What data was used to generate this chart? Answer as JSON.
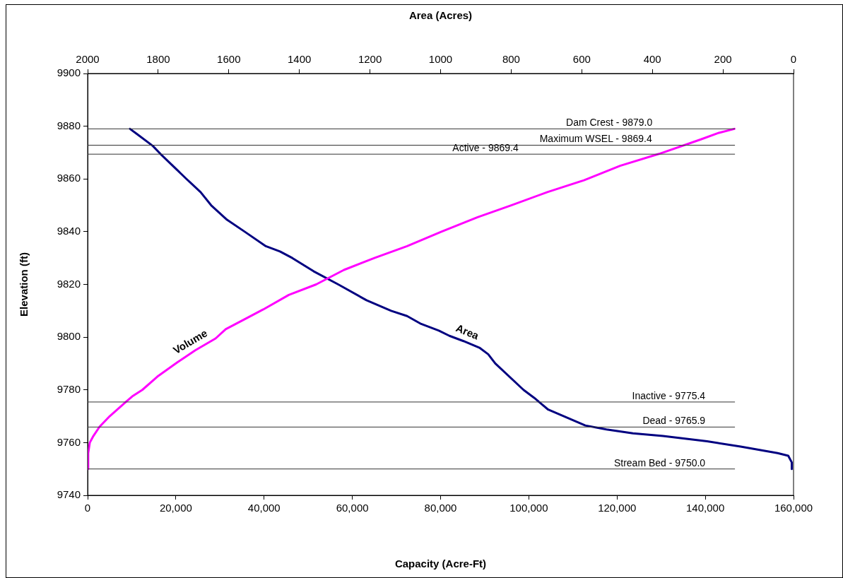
{
  "chart_data": {
    "type": "line",
    "xlabel": "Capacity (Acre-Ft)",
    "x2label": "Area (Acres)",
    "ylabel": "Elevation (ft)",
    "xlim": [
      0,
      160000
    ],
    "xticks": [
      {
        "value": 0,
        "label": "0"
      },
      {
        "value": 20000,
        "label": "20,000"
      },
      {
        "value": 40000,
        "label": "40,000"
      },
      {
        "value": 60000,
        "label": "60,000"
      },
      {
        "value": 80000,
        "label": "80,000"
      },
      {
        "value": 100000,
        "label": "100,000"
      },
      {
        "value": 120000,
        "label": "120,000"
      },
      {
        "value": 140000,
        "label": "140,000"
      },
      {
        "value": 160000,
        "label": "160,000"
      }
    ],
    "x2lim": [
      2000,
      0
    ],
    "x2ticks": [
      2000,
      1800,
      1600,
      1400,
      1200,
      1000,
      800,
      600,
      400,
      200,
      0
    ],
    "ylim": [
      9740,
      9900
    ],
    "yticks": [
      9740,
      9760,
      9780,
      9800,
      9820,
      9840,
      9860,
      9880,
      9900
    ],
    "grid": false,
    "legend": false,
    "series": [
      {
        "name": "Volume",
        "color": "#ff00ff",
        "x": [
          0,
          130,
          500,
          1300,
          2700,
          5000,
          8700,
          10100,
          12400,
          15800,
          20400,
          24400,
          29000,
          31300,
          36400,
          39800,
          45600,
          51800,
          58100,
          65000,
          72400,
          80200,
          88400,
          96000,
          104200,
          112500,
          120700,
          129500,
          139000,
          143100,
          146600
        ],
        "values": [
          9750,
          9756,
          9760,
          9762.5,
          9766,
          9770,
          9775.5,
          9777.5,
          9780,
          9785,
          9790.5,
          9795,
          9799.5,
          9803,
          9807.5,
          9810.5,
          9816,
          9820,
          9825.5,
          9830,
          9834.5,
          9840,
          9845.5,
          9850,
          9855,
          9859.5,
          9865,
          9869.5,
          9875,
          9877.5,
          9879
        ]
      },
      {
        "name": "Area",
        "color": "#000080",
        "axis": "x2",
        "x": [
          1880,
          1860,
          1815,
          1790,
          1720,
          1680,
          1650,
          1605,
          1555,
          1495,
          1455,
          1420,
          1360,
          1290,
          1210,
          1140,
          1095,
          1055,
          1005,
          975,
          935,
          890,
          865,
          845,
          765,
          735,
          695,
          660,
          590,
          530,
          455,
          370,
          245,
          150,
          45,
          15,
          5,
          5
        ],
        "values": [
          9879,
          9877,
          9872.5,
          9869,
          9860,
          9855,
          9850,
          9844.5,
          9840,
          9834.5,
          9832.5,
          9830,
          9825,
          9820,
          9814,
          9810,
          9808,
          9805,
          9802.5,
          9800.5,
          9798.5,
          9796,
          9793.5,
          9790,
          9780,
          9777,
          9772.5,
          9770.5,
          9766.5,
          9765,
          9763.5,
          9762.5,
          9760.5,
          9758.5,
          9756,
          9755,
          9752.5,
          9750
        ]
      }
    ],
    "ref_lines": [
      {
        "axis": "y",
        "value": 9879,
        "label": "Dam Crest - 9879.0",
        "color": "#333333"
      },
      {
        "axis": "y",
        "value": 9872.8,
        "label": "Maximum WSEL - 9869.4",
        "color": "#333333"
      },
      {
        "axis": "y",
        "value": 9869.4,
        "label": "Active - 9869.4",
        "color": "#333333"
      },
      {
        "axis": "y",
        "value": 9775.4,
        "label": "Inactive - 9775.4",
        "color": "#333333"
      },
      {
        "axis": "y",
        "value": 9765.9,
        "label": "Dead - 9765.9",
        "color": "#333333"
      },
      {
        "axis": "y",
        "value": 9750,
        "label": "Stream Bed - 9750.0",
        "color": "#333333"
      }
    ]
  }
}
